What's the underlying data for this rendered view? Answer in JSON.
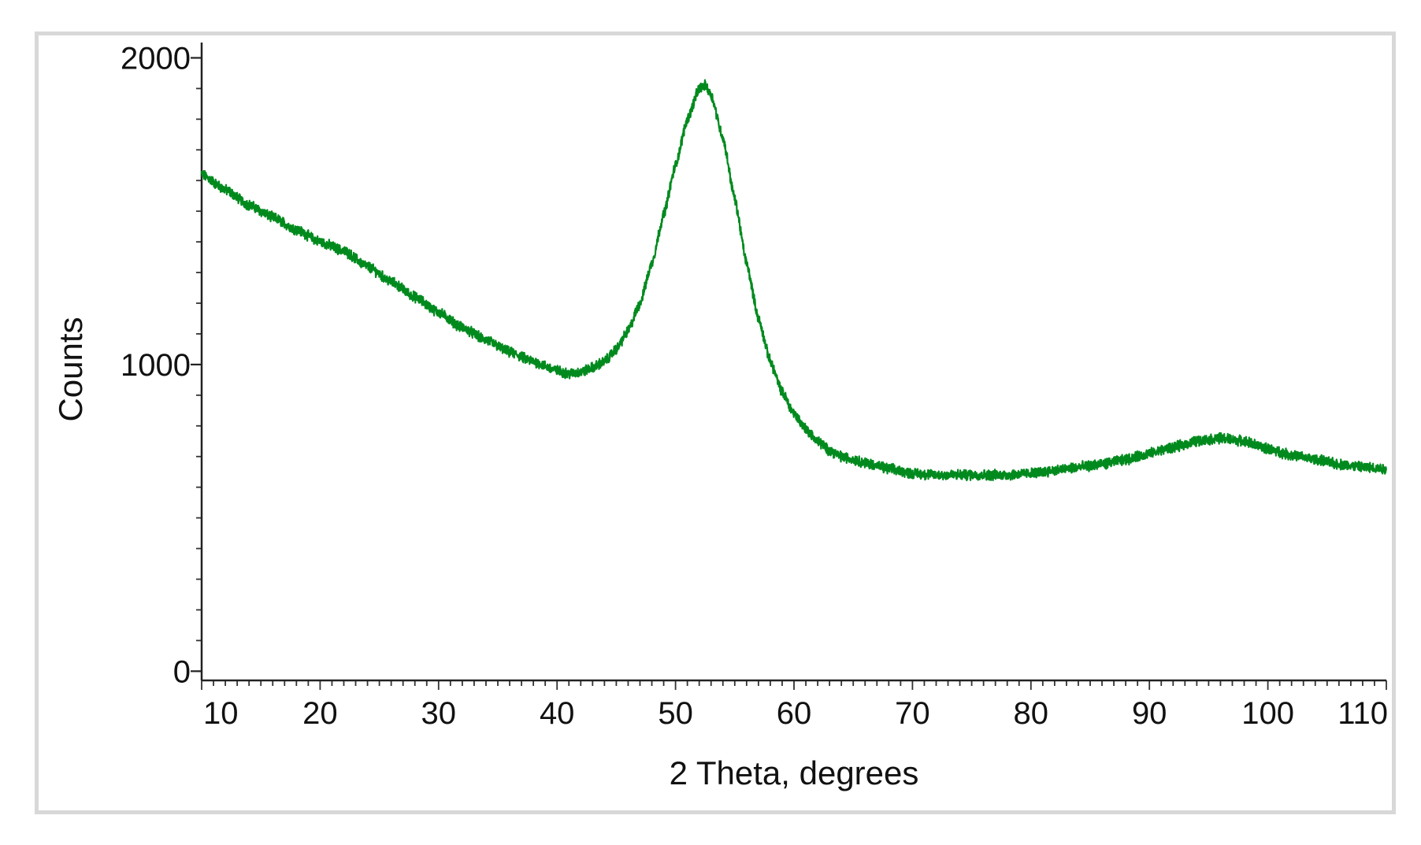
{
  "chart_data": {
    "type": "line",
    "title": "",
    "xlabel": "2 Theta, degrees",
    "ylabel": "Counts",
    "xlim": [
      10,
      110
    ],
    "ylim": [
      -30,
      2050
    ],
    "x_ticks": [
      10,
      20,
      30,
      40,
      50,
      60,
      70,
      80,
      90,
      100,
      110
    ],
    "x_tick_labels": [
      "10",
      "20",
      "30",
      "40",
      "50",
      "60",
      "70",
      "80",
      "90",
      "100",
      "110"
    ],
    "y_ticks": [
      0,
      1000,
      2000
    ],
    "y_tick_labels": [
      "0",
      "1000",
      "2000"
    ],
    "grid": false,
    "legend": "none",
    "series": [
      {
        "color": "#008a1e",
        "x": [
          10,
          12,
          14,
          16,
          18,
          20,
          22,
          24,
          26,
          28,
          30,
          32,
          34,
          36,
          38,
          40,
          41,
          42,
          43,
          44,
          45,
          46,
          47,
          48,
          49,
          50,
          51,
          52,
          52.5,
          53,
          54,
          55,
          56,
          57,
          58,
          59,
          60,
          61,
          62,
          63,
          64,
          65,
          66,
          68,
          70,
          72,
          74,
          76,
          78,
          80,
          82,
          84,
          86,
          88,
          90,
          92,
          94,
          96,
          98,
          100,
          102,
          104,
          106,
          108,
          110
        ],
        "y": [
          1620,
          1570,
          1520,
          1480,
          1440,
          1400,
          1370,
          1320,
          1270,
          1220,
          1170,
          1120,
          1080,
          1040,
          1010,
          980,
          970,
          975,
          990,
          1010,
          1050,
          1110,
          1200,
          1330,
          1490,
          1650,
          1800,
          1900,
          1910,
          1880,
          1740,
          1540,
          1330,
          1150,
          1010,
          910,
          840,
          790,
          750,
          720,
          700,
          690,
          680,
          660,
          645,
          640,
          640,
          640,
          640,
          645,
          655,
          665,
          675,
          690,
          710,
          730,
          750,
          760,
          750,
          725,
          705,
          690,
          675,
          665,
          660
        ],
        "noise": 14
      }
    ]
  }
}
